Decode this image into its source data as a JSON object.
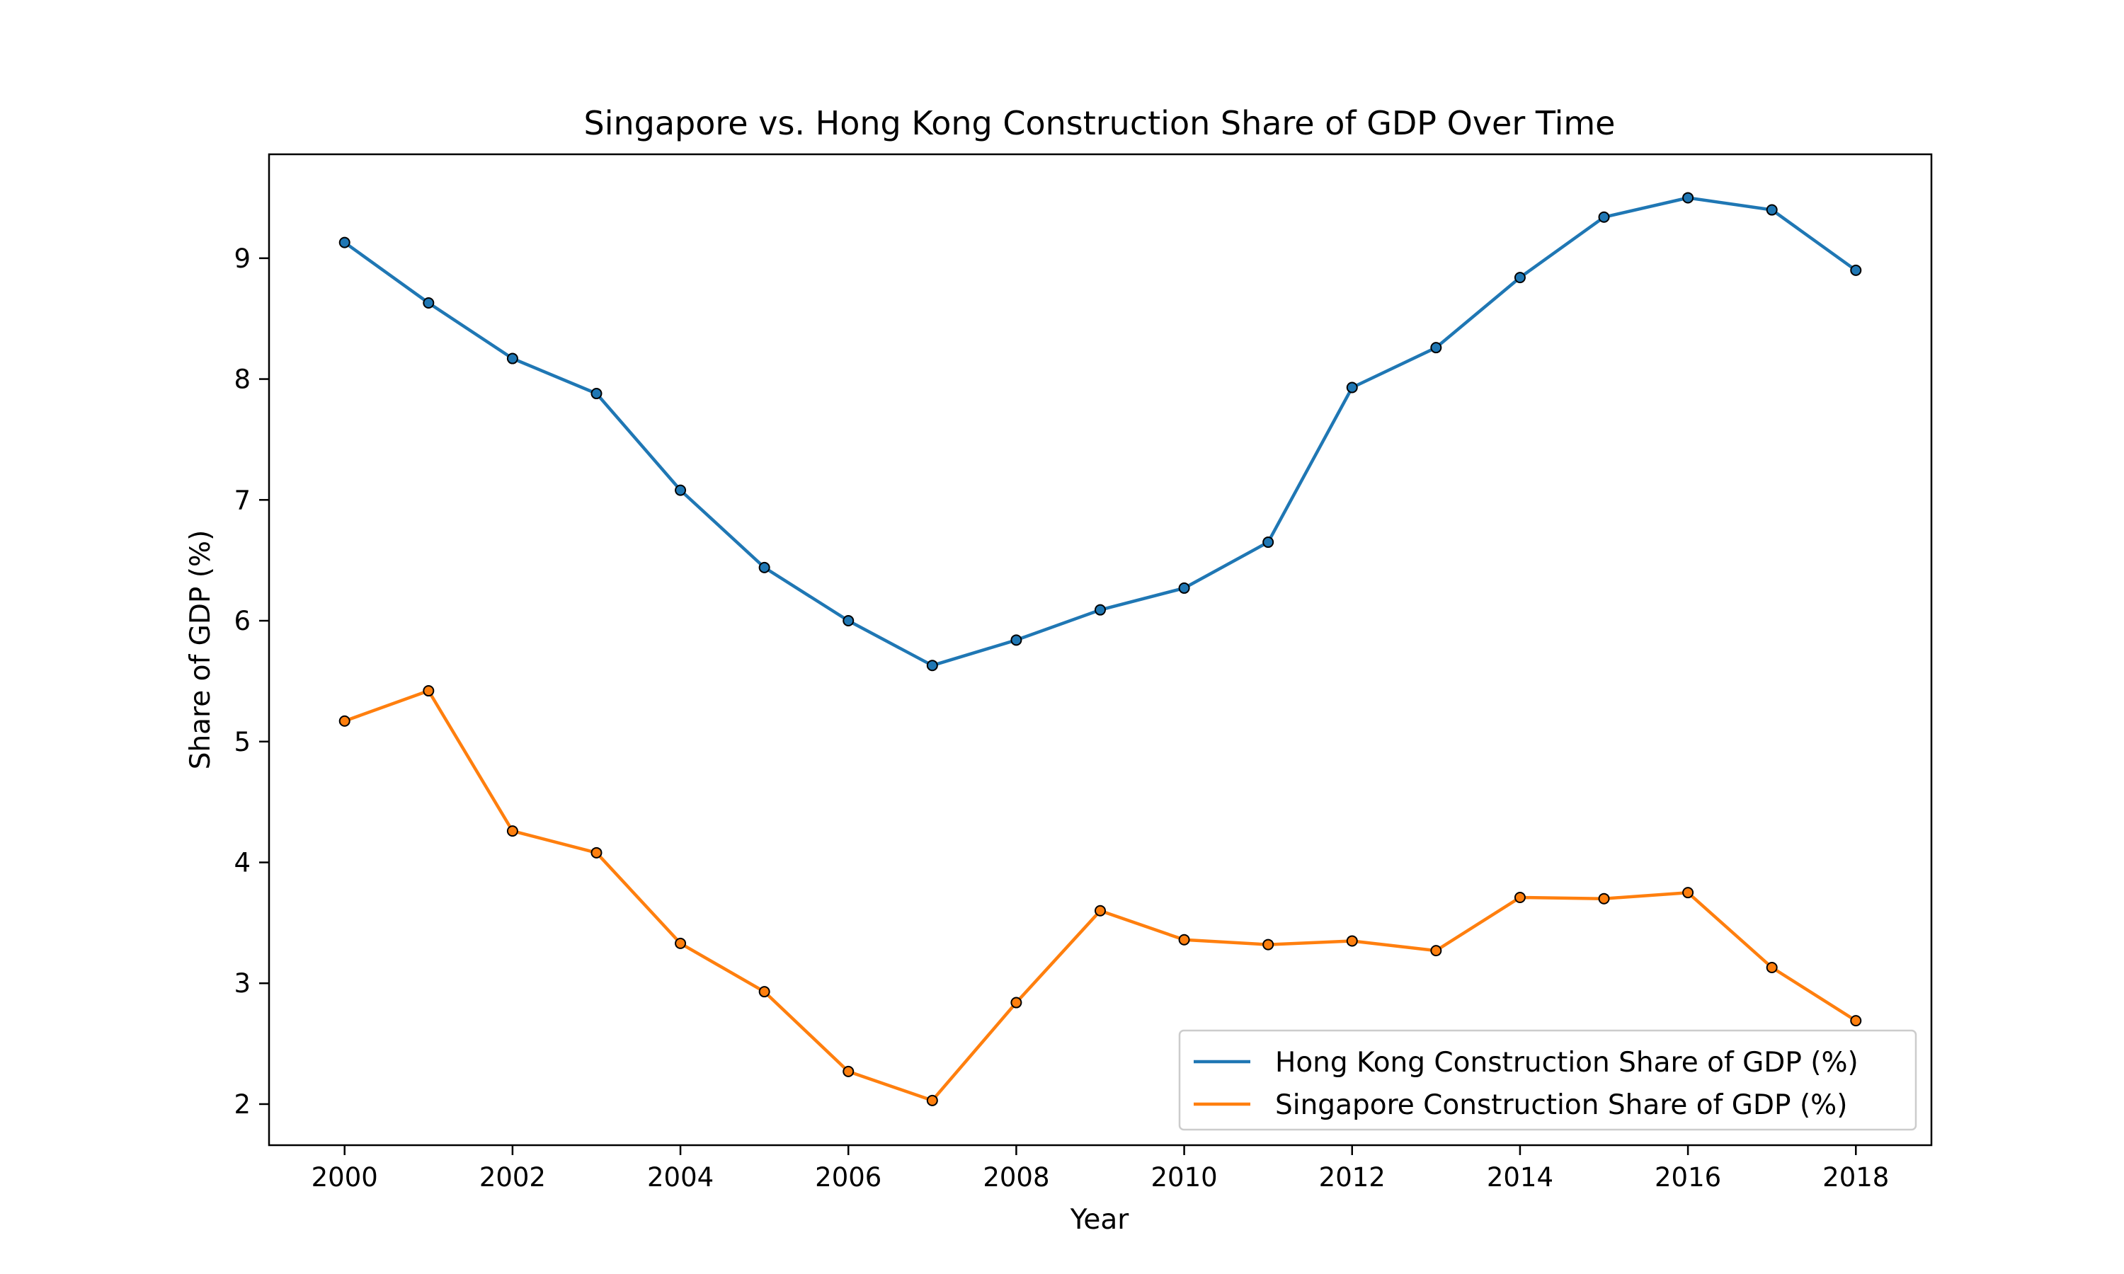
{
  "chart_data": {
    "type": "line",
    "title": "Singapore vs. Hong Kong Construction Share of GDP Over Time",
    "xlabel": "Year",
    "ylabel": "Share of GDP (%)",
    "x": [
      2000,
      2001,
      2002,
      2003,
      2004,
      2005,
      2006,
      2007,
      2008,
      2009,
      2010,
      2011,
      2012,
      2013,
      2014,
      2015,
      2016,
      2017,
      2018
    ],
    "xlim": [
      1999.1,
      2018.9
    ],
    "ylim": [
      1.66,
      9.86
    ],
    "xticks": [
      2000,
      2002,
      2004,
      2006,
      2008,
      2010,
      2012,
      2014,
      2016,
      2018
    ],
    "yticks": [
      2,
      3,
      4,
      5,
      6,
      7,
      8,
      9
    ],
    "grid": false,
    "legend_position": "lower-right",
    "series": [
      {
        "name": "Hong Kong Construction Share of GDP (%)",
        "color": "#1f77b4",
        "values": [
          9.13,
          8.63,
          8.17,
          7.88,
          7.08,
          6.44,
          6.0,
          5.63,
          5.84,
          6.09,
          6.27,
          6.65,
          7.93,
          8.26,
          8.84,
          9.34,
          9.5,
          9.4,
          8.9
        ]
      },
      {
        "name": "Singapore Construction Share of GDP (%)",
        "color": "#ff7f0e",
        "values": [
          5.17,
          5.42,
          4.26,
          4.08,
          3.33,
          2.93,
          2.27,
          2.03,
          2.84,
          3.6,
          3.36,
          3.32,
          3.35,
          3.27,
          3.71,
          3.7,
          3.75,
          3.13,
          2.69
        ]
      }
    ]
  }
}
